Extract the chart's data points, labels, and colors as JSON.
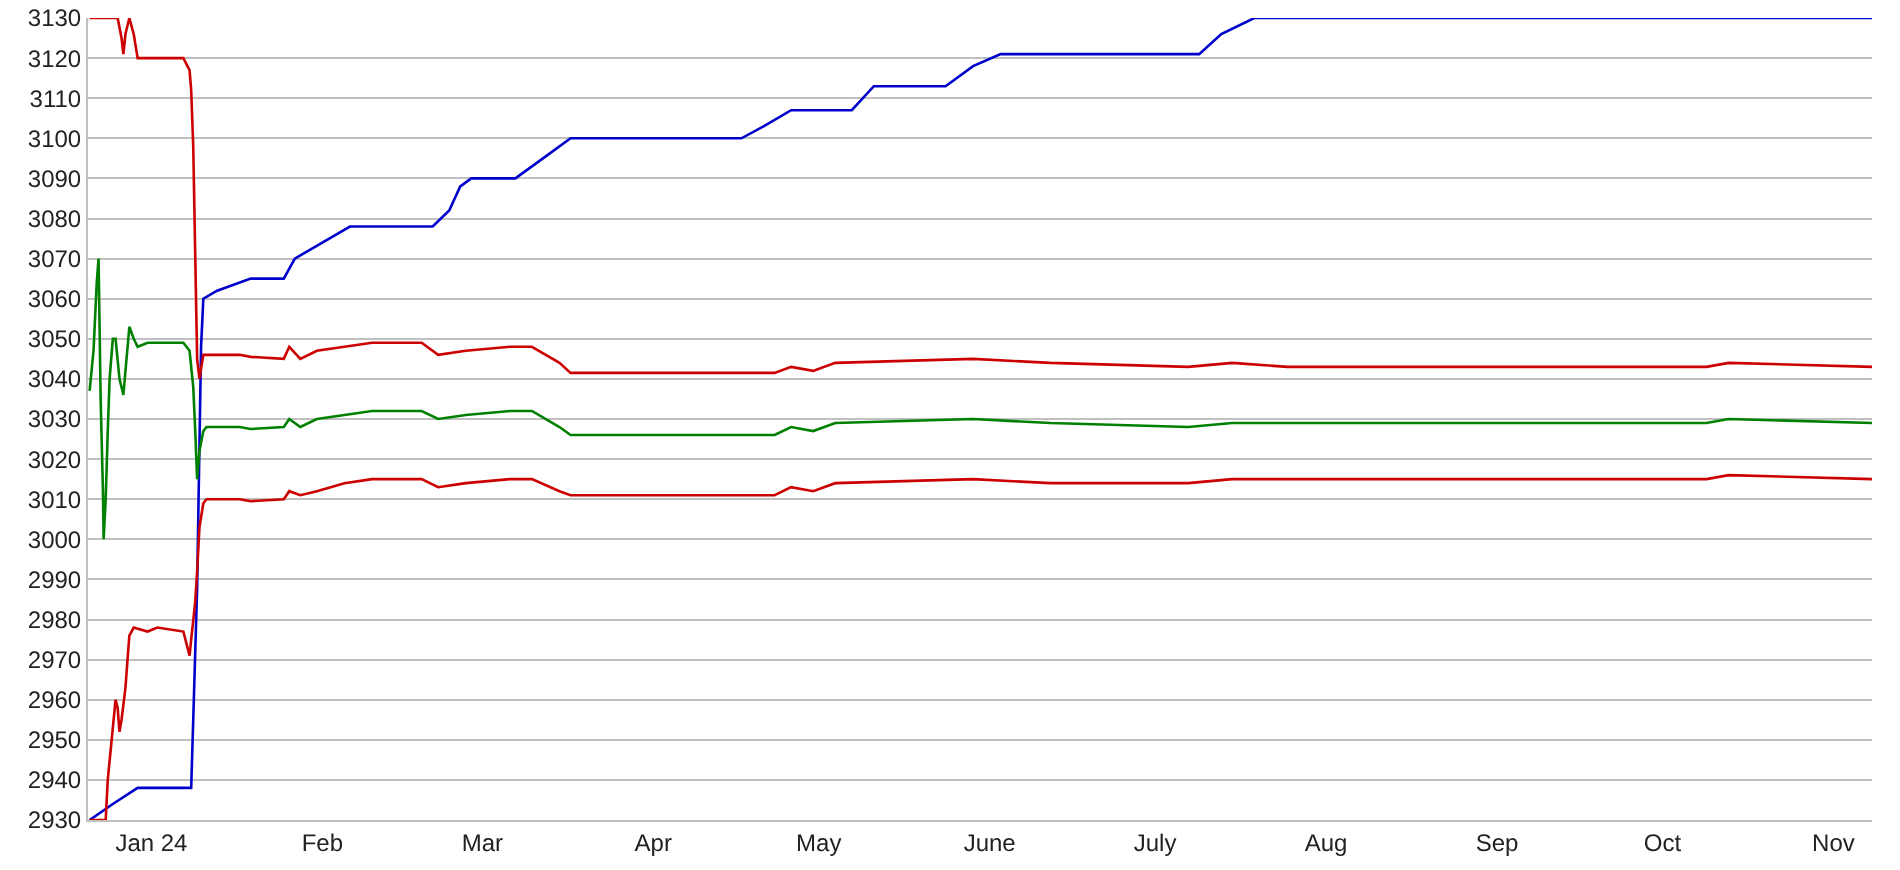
{
  "chart_data": {
    "type": "line",
    "xlim": [
      "2023-12-20T12:00",
      "2024-11-08"
    ],
    "ylim": [
      2930,
      3130
    ],
    "xticks": [
      {
        "value": "2024-01-01",
        "label": "Jan 24"
      },
      {
        "value": "2024-02-01",
        "label": "Feb"
      },
      {
        "value": "2024-03-01",
        "label": "Mar"
      },
      {
        "value": "2024-04-01",
        "label": "Apr"
      },
      {
        "value": "2024-05-01",
        "label": "May"
      },
      {
        "value": "2024-06-01",
        "label": "June"
      },
      {
        "value": "2024-07-01",
        "label": "July"
      },
      {
        "value": "2024-08-01",
        "label": "Aug"
      },
      {
        "value": "2024-09-01",
        "label": "Sep"
      },
      {
        "value": "2024-10-01",
        "label": "Oct"
      },
      {
        "value": "2024-11-01",
        "label": "Nov"
      }
    ],
    "yticks": [
      2930,
      2940,
      2950,
      2960,
      2970,
      2980,
      2990,
      3000,
      3010,
      3020,
      3030,
      3040,
      3050,
      3060,
      3070,
      3080,
      3090,
      3100,
      3110,
      3120,
      3130
    ],
    "grid": "y",
    "marker": "none",
    "line_style": "solid",
    "series": [
      {
        "color": "#0000cc",
        "x": [
          "2023-12-20T19:00",
          "2023-12-25T00:00",
          "2023-12-29T12:00",
          "2024-01-08T05:00",
          "2024-01-08T14:00",
          "2024-01-09T07:00",
          "2024-01-10T00:00",
          "2024-01-10T10:00",
          "2024-01-12T22:00",
          "2024-01-19",
          "2024-01-25",
          "2024-01-27",
          "2024-02-06",
          "2024-02-21",
          "2024-02-24",
          "2024-02-26",
          "2024-02-28",
          "2024-03-07",
          "2024-03-13",
          "2024-03-17",
          "2024-04-17",
          "2024-04-21",
          "2024-04-26",
          "2024-05-07",
          "2024-05-11",
          "2024-05-24",
          "2024-05-29",
          "2024-06-03",
          "2024-07-09",
          "2024-07-13",
          "2024-07-19",
          "2024-11-08"
        ],
        "values": [
          2930,
          2934,
          2938,
          2938,
          2955,
          2988,
          3048,
          3060,
          3062,
          3065,
          3065,
          3070,
          3078,
          3078,
          3082,
          3088,
          3090,
          3090,
          3096,
          3100,
          3100,
          3103,
          3107,
          3107,
          3113,
          3113,
          3118,
          3121,
          3121,
          3126,
          3130,
          3130
        ]
      },
      {
        "color": "#cc0000",
        "x": [
          "2023-12-20T19:00",
          "2023-12-25T21:00",
          "2023-12-26T14:00",
          "2023-12-26T22:00",
          "2023-12-27T07:00",
          "2023-12-28T00:00",
          "2023-12-28T19:00",
          "2023-12-29T12:00",
          "2024-01-02T02:00",
          "2024-01-06T19:00",
          "2024-01-07T22:00",
          "2024-01-08T05:00",
          "2024-01-08T14:00",
          "2024-01-08T22:00",
          "2024-01-09T07:00",
          "2024-01-09T17:00",
          "2024-01-10T10:00",
          "2024-01-11",
          "2024-01-17",
          "2024-01-19",
          "2024-01-25",
          "2024-01-26",
          "2024-01-28",
          "2024-01-31",
          "2024-02-05",
          "2024-02-10",
          "2024-02-19",
          "2024-02-22",
          "2024-02-27",
          "2024-03-06",
          "2024-03-10",
          "2024-03-15",
          "2024-03-17",
          "2024-04-01",
          "2024-04-23",
          "2024-04-26",
          "2024-04-30",
          "2024-05-04",
          "2024-05-29",
          "2024-06-12",
          "2024-07-07",
          "2024-07-15",
          "2024-07-25",
          "2024-09-18",
          "2024-10-09",
          "2024-10-13",
          "2024-11-08"
        ],
        "values": [
          3130,
          3130,
          3125,
          3121,
          3126,
          3130,
          3126,
          3120,
          3120,
          3120,
          3117,
          3112,
          3098,
          3073,
          3045,
          3040,
          3046,
          3046,
          3046,
          3045.5,
          3045,
          3048,
          3045,
          3047,
          3048,
          3049,
          3049,
          3046,
          3047,
          3048,
          3048,
          3044,
          3041.5,
          3041.5,
          3041.5,
          3043,
          3042,
          3044,
          3045,
          3044,
          3043,
          3044,
          3043,
          3043,
          3043,
          3044,
          3043
        ]
      },
      {
        "color": "#008000",
        "x": [
          "2023-12-20T19:00",
          "2023-12-21T12:00",
          "2023-12-22T02:00",
          "2023-12-22T10:00",
          "2023-12-22T19:00",
          "2023-12-23T05:00",
          "2023-12-23T08:00",
          "2023-12-23T17:00",
          "2023-12-24T02:00",
          "2023-12-24T10:00",
          "2023-12-25T00:00",
          "2023-12-25T12:00",
          "2023-12-26T05:00",
          "2023-12-26T22:00",
          "2023-12-27T07:00",
          "2023-12-28T00:00",
          "2023-12-28T19:00",
          "2023-12-29T12:00",
          "2023-12-31T07:00",
          "2024-01-02T02:00",
          "2024-01-06T19:00",
          "2024-01-07T22:00",
          "2024-01-08T14:00",
          "2024-01-08T22:00",
          "2024-01-09T07:00",
          "2024-01-09T17:00",
          "2024-01-10T10:00",
          "2024-01-11",
          "2024-01-17",
          "2024-01-19",
          "2024-01-25",
          "2024-01-26",
          "2024-01-28",
          "2024-01-31",
          "2024-02-05",
          "2024-02-10",
          "2024-02-19",
          "2024-02-22",
          "2024-02-27",
          "2024-03-06",
          "2024-03-10",
          "2024-03-15",
          "2024-03-17",
          "2024-04-01",
          "2024-04-23",
          "2024-04-26",
          "2024-04-30",
          "2024-05-04",
          "2024-05-29",
          "2024-06-12",
          "2024-07-07",
          "2024-07-15",
          "2024-07-25",
          "2024-09-18",
          "2024-10-09",
          "2024-10-13",
          "2024-11-08"
        ],
        "values": [
          3037,
          3047,
          3064,
          3070,
          3035,
          3012,
          3000,
          3010,
          3027,
          3040,
          3050,
          3050,
          3040,
          3036,
          3042,
          3053,
          3050,
          3048,
          3049,
          3049,
          3049,
          3047,
          3038,
          3028,
          3015,
          3022,
          3027,
          3028,
          3028,
          3027.5,
          3028,
          3030,
          3028,
          3030,
          3031,
          3032,
          3032,
          3030,
          3031,
          3032,
          3032,
          3028,
          3026,
          3026,
          3026,
          3028,
          3027,
          3029,
          3030,
          3029,
          3028,
          3029,
          3029,
          3029,
          3029,
          3030,
          3029
        ]
      },
      {
        "color": "#cc0000",
        "x": [
          "2023-12-20T19:00",
          "2023-12-23T17:00",
          "2023-12-24T02:00",
          "2023-12-24T19:00",
          "2023-12-25T12:00",
          "2023-12-25T21:00",
          "2023-12-26T05:00",
          "2023-12-26T14:00",
          "2023-12-27T07:00",
          "2023-12-27T16:00",
          "2023-12-28T00:00",
          "2023-12-28T19:00",
          "2023-12-31T07:00",
          "2024-01-02T02:00",
          "2024-01-06T19:00",
          "2024-01-07T22:00",
          "2024-01-08T05:00",
          "2024-01-08T22:00",
          "2024-01-09T07:00",
          "2024-01-09T17:00",
          "2024-01-10T10:00",
          "2024-01-11",
          "2024-01-17",
          "2024-01-19",
          "2024-01-25",
          "2024-01-26",
          "2024-01-28",
          "2024-01-31",
          "2024-02-05",
          "2024-02-10",
          "2024-02-19",
          "2024-02-22",
          "2024-02-27",
          "2024-03-06",
          "2024-03-10",
          "2024-03-15",
          "2024-03-17",
          "2024-04-01",
          "2024-04-23",
          "2024-04-26",
          "2024-04-30",
          "2024-05-04",
          "2024-05-29",
          "2024-06-12",
          "2024-07-07",
          "2024-07-15",
          "2024-07-25",
          "2024-09-18",
          "2024-10-09",
          "2024-10-13",
          "2024-11-08"
        ],
        "values": [
          2930,
          2930,
          2940,
          2950,
          2960,
          2958,
          2952,
          2955,
          2963,
          2970,
          2976,
          2978,
          2977,
          2978,
          2977,
          2971,
          2975,
          2984,
          2992,
          3003,
          3009,
          3010,
          3010,
          3009.5,
          3010,
          3012,
          3011,
          3012,
          3014,
          3015,
          3015,
          3013,
          3014,
          3015,
          3015,
          3012,
          3011,
          3011,
          3011,
          3013,
          3012,
          3014,
          3015,
          3014,
          3014,
          3015,
          3015,
          3015,
          3015,
          3016,
          3015
        ]
      }
    ]
  }
}
